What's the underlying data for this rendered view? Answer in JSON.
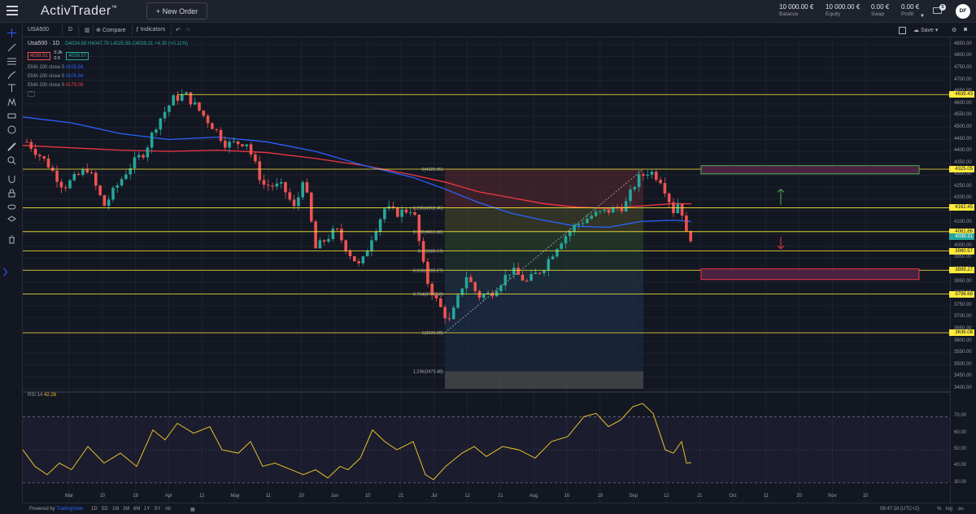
{
  "app": {
    "logo": "ActivTrader",
    "logo_mark": "™",
    "new_order": "+ New Order"
  },
  "account": [
    {
      "value": "10 000.00 €",
      "label": "Balance"
    },
    {
      "value": "10 000.00 €",
      "label": "Equity"
    },
    {
      "value": "0.00 €",
      "label": "Swap"
    },
    {
      "value": "0.00 €",
      "label": "Profit"
    }
  ],
  "notifications": "5",
  "user_initials": "DF",
  "toolbar": {
    "symbol": "USA500",
    "interval": "D",
    "compare": "Compare",
    "indicators": "Indicators",
    "save": "Save"
  },
  "legend": {
    "symbol_line": "Usa500 · 1D",
    "ohlc": "O4034.69 H4047.79 L4025.98 C4039.31 +4.30 (+0.11%)",
    "sell_price": "4039.31",
    "spread_top": "0.2k",
    "spread_bottom": "0.5",
    "buy_price": "4039.57",
    "emas": [
      {
        "label": "EMA 100 close 0",
        "value": "4105.84",
        "color": "#2962ff"
      },
      {
        "label": "EMA 100 close 0",
        "value": "4105.84",
        "color": "#2962ff"
      },
      {
        "label": "EMA 200 close 0",
        "value": "4179.08",
        "color": "#f23645"
      }
    ]
  },
  "rsi_legend": {
    "label": "RSI 14",
    "value": "42.26"
  },
  "colors": {
    "up": "#26a69a",
    "down": "#ef5350",
    "ema100": "#2962ff",
    "ema200": "#f23645",
    "hline": "#ffeb3b",
    "rsi": "#e6c229"
  },
  "price_axis": [
    "4850.00",
    "4800.00",
    "4750.00",
    "4700.00",
    "4650.00",
    "4600.00",
    "4550.00",
    "4500.00",
    "4450.00",
    "4400.00",
    "4350.00",
    "4300.00",
    "4250.00",
    "4200.00",
    "4150.00",
    "4100.00",
    "4050.00",
    "4000.00",
    "3950.00",
    "3900.00",
    "3850.00",
    "3800.00",
    "3750.00",
    "3700.00",
    "3650.00",
    "3600.00",
    "3550.00",
    "3500.00",
    "3450.00",
    "3400.00"
  ],
  "price_axis_values": [
    4850,
    4800,
    4750,
    4700,
    4650,
    4600,
    4550,
    4500,
    4450,
    4400,
    4350,
    4300,
    4250,
    4200,
    4150,
    4100,
    4050,
    4000,
    3950,
    3900,
    3850,
    3800,
    3750,
    3700,
    3650,
    3600,
    3550,
    3500,
    3450,
    3400
  ],
  "hlines": [
    {
      "label": "4639.43",
      "value": 4639.43
    },
    {
      "label": "4325.05",
      "value": 4325.05
    },
    {
      "label": "4162.45",
      "value": 4162.45
    },
    {
      "label": "4061.86",
      "value": 4061.86
    },
    {
      "label": "3980.57",
      "value": 3980.57
    },
    {
      "label": "3899.27",
      "value": 3899.27
    },
    {
      "label": "3798.68",
      "value": 3798.68
    },
    {
      "label": "3636.08",
      "value": 3636.08
    }
  ],
  "last_price": {
    "label": "4039.31",
    "value": 4039.31
  },
  "fib_labels": [
    {
      "text": "0(4325.05)",
      "value": 4325.05
    },
    {
      "text": "0.236(4162.45)",
      "value": 4162.45
    },
    {
      "text": "0.382(4061.86)",
      "value": 4061.86
    },
    {
      "text": "0.5(3980.57)",
      "value": 3980.57
    },
    {
      "text": "0.618(3899.27)",
      "value": 3899.27
    },
    {
      "text": "0.764(3798.68)",
      "value": 3798.68
    },
    {
      "text": "1(3636.08)",
      "value": 3636.08
    },
    {
      "text": "1.236(3473.48)",
      "value": 3473.48
    }
  ],
  "rsi_axis": [
    "70.00",
    "60.00",
    "50.00",
    "40.00",
    "30.00"
  ],
  "rsi_axis_values": [
    70,
    60,
    50,
    40,
    30
  ],
  "time_axis": [
    "Mar",
    "10",
    "18",
    "Apr",
    "12",
    "May",
    "11",
    "20",
    "Jun",
    "10",
    "21",
    "Jul",
    "12",
    "21",
    "Aug",
    "10",
    "19",
    "Sep",
    "12",
    "21",
    "Oct",
    "11",
    "20",
    "Nov",
    "10"
  ],
  "timeframes": [
    "1D",
    "5D",
    "1M",
    "3M",
    "6M",
    "1Y",
    "5Y",
    "All"
  ],
  "bottom": {
    "brand_prefix": "Powered by",
    "brand": "TradingView",
    "clock": "08:47:18 (UTC+2)",
    "pct": "%",
    "log": "log",
    "auto": "au"
  }
}
